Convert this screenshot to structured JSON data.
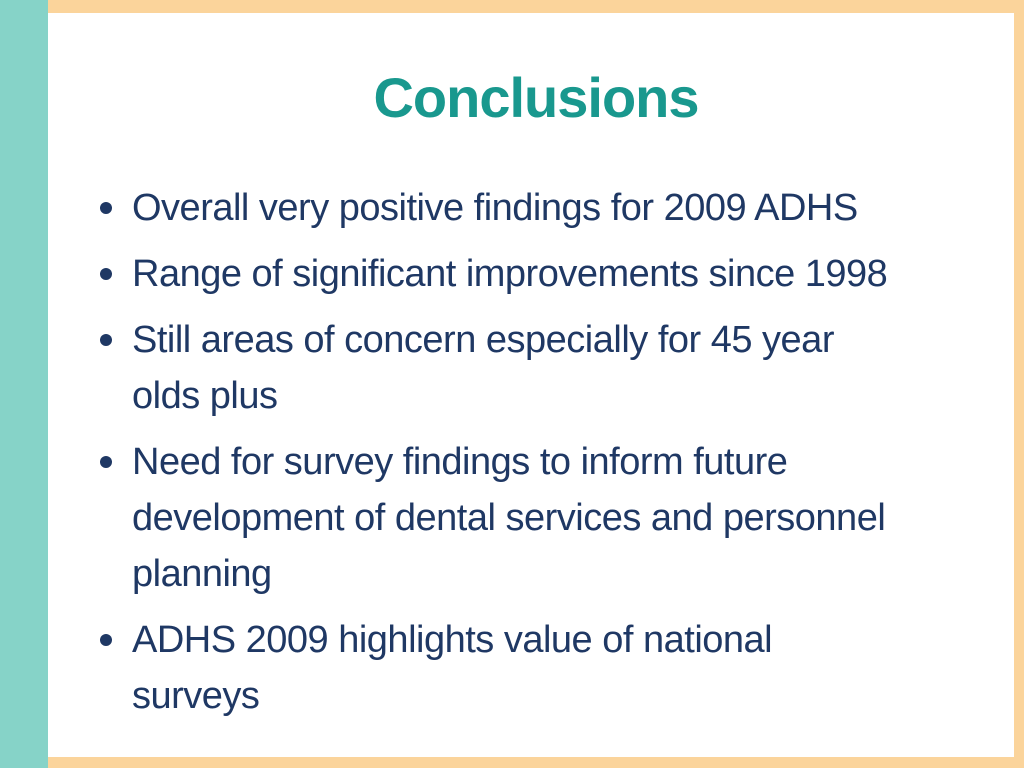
{
  "slide": {
    "title": "Conclusions",
    "bullets": [
      "Overall very positive findings for 2009 ADHS",
      "Range of significant improvements since 1998",
      "Still areas of concern especially for 45 year\nolds plus",
      "Need for survey findings to inform future\ndevelopment of dental services and personnel\nplanning",
      "ADHS 2009 highlights value of national\nsurveys"
    ],
    "colors": {
      "sidebar_teal": "#86d3c8",
      "border_tan": "#fbd49b",
      "title_teal": "#19988e",
      "text_navy": "#1f3864",
      "background": "#ffffff"
    }
  }
}
